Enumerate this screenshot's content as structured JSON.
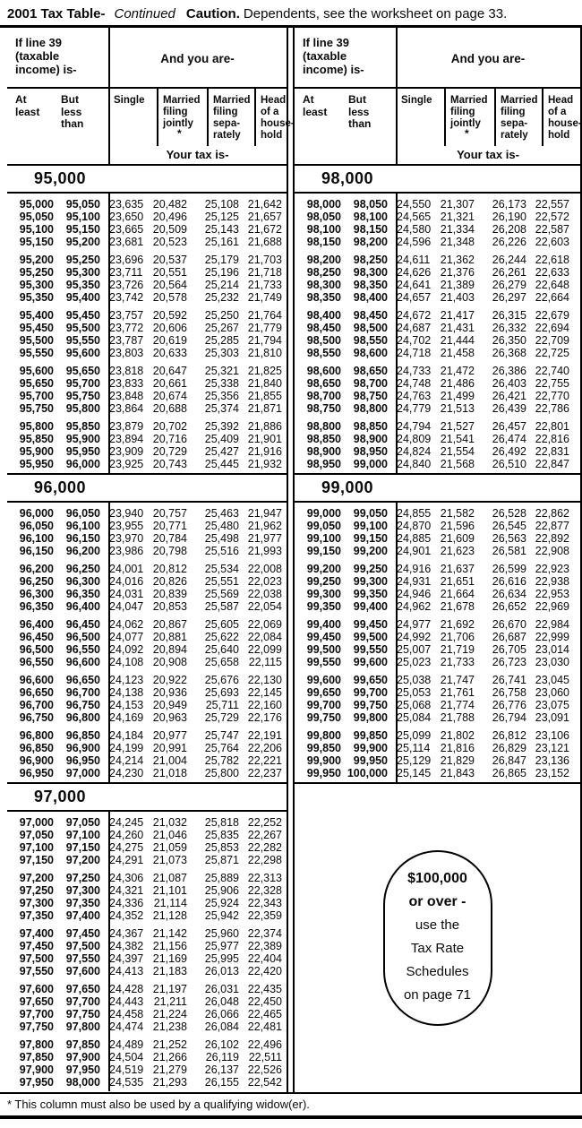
{
  "title": {
    "main": "2001 Tax Table-",
    "continued": "Continued",
    "caution": "Caution.",
    "caution_text": "Dependents, see the worksheet on page 33."
  },
  "header": {
    "income_label": "If line 39\n(taxable\nincome) is-",
    "and_you_are": "And you are-",
    "at_least": "At\nleast",
    "but_less_than": "But\nless\nthan",
    "col_single": "Single",
    "col_mfj": "Married\nfiling\njointly",
    "col_mfj_note": "*",
    "col_mfs": "Married\nfiling\nsepa-\nrately",
    "col_hoh": "Head\nof a\nhouse-\nhold",
    "your_tax_is": "Your tax is-"
  },
  "sections": [
    {
      "label": "95,000",
      "side": "left",
      "rows": [
        [
          "95,000",
          "95,050",
          "23,635",
          "20,482",
          "25,108",
          "21,642"
        ],
        [
          "95,050",
          "95,100",
          "23,650",
          "20,496",
          "25,125",
          "21,657"
        ],
        [
          "95,100",
          "95,150",
          "23,665",
          "20,509",
          "25,143",
          "21,672"
        ],
        [
          "95,150",
          "95,200",
          "23,681",
          "20,523",
          "25,161",
          "21,688"
        ],
        [
          "95,200",
          "95,250",
          "23,696",
          "20,537",
          "25,179",
          "21,703"
        ],
        [
          "95,250",
          "95,300",
          "23,711",
          "20,551",
          "25,196",
          "21,718"
        ],
        [
          "95,300",
          "95,350",
          "23,726",
          "20,564",
          "25,214",
          "21,733"
        ],
        [
          "95,350",
          "95,400",
          "23,742",
          "20,578",
          "25,232",
          "21,749"
        ],
        [
          "95,400",
          "95,450",
          "23,757",
          "20,592",
          "25,250",
          "21,764"
        ],
        [
          "95,450",
          "95,500",
          "23,772",
          "20,606",
          "25,267",
          "21,779"
        ],
        [
          "95,500",
          "95,550",
          "23,787",
          "20,619",
          "25,285",
          "21,794"
        ],
        [
          "95,550",
          "95,600",
          "23,803",
          "20,633",
          "25,303",
          "21,810"
        ],
        [
          "95,600",
          "95,650",
          "23,818",
          "20,647",
          "25,321",
          "21,825"
        ],
        [
          "95,650",
          "95,700",
          "23,833",
          "20,661",
          "25,338",
          "21,840"
        ],
        [
          "95,700",
          "95,750",
          "23,848",
          "20,674",
          "25,356",
          "21,855"
        ],
        [
          "95,750",
          "95,800",
          "23,864",
          "20,688",
          "25,374",
          "21,871"
        ],
        [
          "95,800",
          "95,850",
          "23,879",
          "20,702",
          "25,392",
          "21,886"
        ],
        [
          "95,850",
          "95,900",
          "23,894",
          "20,716",
          "25,409",
          "21,901"
        ],
        [
          "95,900",
          "95,950",
          "23,909",
          "20,729",
          "25,427",
          "21,916"
        ],
        [
          "95,950",
          "96,000",
          "23,925",
          "20,743",
          "25,445",
          "21,932"
        ]
      ]
    },
    {
      "label": "96,000",
      "side": "left",
      "rows": [
        [
          "96,000",
          "96,050",
          "23,940",
          "20,757",
          "25,463",
          "21,947"
        ],
        [
          "96,050",
          "96,100",
          "23,955",
          "20,771",
          "25,480",
          "21,962"
        ],
        [
          "96,100",
          "96,150",
          "23,970",
          "20,784",
          "25,498",
          "21,977"
        ],
        [
          "96,150",
          "96,200",
          "23,986",
          "20,798",
          "25,516",
          "21,993"
        ],
        [
          "96,200",
          "96,250",
          "24,001",
          "20,812",
          "25,534",
          "22,008"
        ],
        [
          "96,250",
          "96,300",
          "24,016",
          "20,826",
          "25,551",
          "22,023"
        ],
        [
          "96,300",
          "96,350",
          "24,031",
          "20,839",
          "25,569",
          "22,038"
        ],
        [
          "96,350",
          "96,400",
          "24,047",
          "20,853",
          "25,587",
          "22,054"
        ],
        [
          "96,400",
          "96,450",
          "24,062",
          "20,867",
          "25,605",
          "22,069"
        ],
        [
          "96,450",
          "96,500",
          "24,077",
          "20,881",
          "25,622",
          "22,084"
        ],
        [
          "96,500",
          "96,550",
          "24,092",
          "20,894",
          "25,640",
          "22,099"
        ],
        [
          "96,550",
          "96,600",
          "24,108",
          "20,908",
          "25,658",
          "22,115"
        ],
        [
          "96,600",
          "96,650",
          "24,123",
          "20,922",
          "25,676",
          "22,130"
        ],
        [
          "96,650",
          "96,700",
          "24,138",
          "20,936",
          "25,693",
          "22,145"
        ],
        [
          "96,700",
          "96,750",
          "24,153",
          "20,949",
          "25,711",
          "22,160"
        ],
        [
          "96,750",
          "96,800",
          "24,169",
          "20,963",
          "25,729",
          "22,176"
        ],
        [
          "96,800",
          "96,850",
          "24,184",
          "20,977",
          "25,747",
          "22,191"
        ],
        [
          "96,850",
          "96,900",
          "24,199",
          "20,991",
          "25,764",
          "22,206"
        ],
        [
          "96,900",
          "96,950",
          "24,214",
          "21,004",
          "25,782",
          "22,221"
        ],
        [
          "96,950",
          "97,000",
          "24,230",
          "21,018",
          "25,800",
          "22,237"
        ]
      ]
    },
    {
      "label": "97,000",
      "side": "left",
      "rows": [
        [
          "97,000",
          "97,050",
          "24,245",
          "21,032",
          "25,818",
          "22,252"
        ],
        [
          "97,050",
          "97,100",
          "24,260",
          "21,046",
          "25,835",
          "22,267"
        ],
        [
          "97,100",
          "97,150",
          "24,275",
          "21,059",
          "25,853",
          "22,282"
        ],
        [
          "97,150",
          "97,200",
          "24,291",
          "21,073",
          "25,871",
          "22,298"
        ],
        [
          "97,200",
          "97,250",
          "24,306",
          "21,087",
          "25,889",
          "22,313"
        ],
        [
          "97,250",
          "97,300",
          "24,321",
          "21,101",
          "25,906",
          "22,328"
        ],
        [
          "97,300",
          "97,350",
          "24,336",
          "21,114",
          "25,924",
          "22,343"
        ],
        [
          "97,350",
          "97,400",
          "24,352",
          "21,128",
          "25,942",
          "22,359"
        ],
        [
          "97,400",
          "97,450",
          "24,367",
          "21,142",
          "25,960",
          "22,374"
        ],
        [
          "97,450",
          "97,500",
          "24,382",
          "21,156",
          "25,977",
          "22,389"
        ],
        [
          "97,500",
          "97,550",
          "24,397",
          "21,169",
          "25,995",
          "22,404"
        ],
        [
          "97,550",
          "97,600",
          "24,413",
          "21,183",
          "26,013",
          "22,420"
        ],
        [
          "97,600",
          "97,650",
          "24,428",
          "21,197",
          "26,031",
          "22,435"
        ],
        [
          "97,650",
          "97,700",
          "24,443",
          "21,211",
          "26,048",
          "22,450"
        ],
        [
          "97,700",
          "97,750",
          "24,458",
          "21,224",
          "26,066",
          "22,465"
        ],
        [
          "97,750",
          "97,800",
          "24,474",
          "21,238",
          "26,084",
          "22,481"
        ],
        [
          "97,800",
          "97,850",
          "24,489",
          "21,252",
          "26,102",
          "22,496"
        ],
        [
          "97,850",
          "97,900",
          "24,504",
          "21,266",
          "26,119",
          "22,511"
        ],
        [
          "97,900",
          "97,950",
          "24,519",
          "21,279",
          "26,137",
          "22,526"
        ],
        [
          "97,950",
          "98,000",
          "24,535",
          "21,293",
          "26,155",
          "22,542"
        ]
      ]
    },
    {
      "label": "98,000",
      "side": "right",
      "rows": [
        [
          "98,000",
          "98,050",
          "24,550",
          "21,307",
          "26,173",
          "22,557"
        ],
        [
          "98,050",
          "98,100",
          "24,565",
          "21,321",
          "26,190",
          "22,572"
        ],
        [
          "98,100",
          "98,150",
          "24,580",
          "21,334",
          "26,208",
          "22,587"
        ],
        [
          "98,150",
          "98,200",
          "24,596",
          "21,348",
          "26,226",
          "22,603"
        ],
        [
          "98,200",
          "98,250",
          "24,611",
          "21,362",
          "26,244",
          "22,618"
        ],
        [
          "98,250",
          "98,300",
          "24,626",
          "21,376",
          "26,261",
          "22,633"
        ],
        [
          "98,300",
          "98,350",
          "24,641",
          "21,389",
          "26,279",
          "22,648"
        ],
        [
          "98,350",
          "98,400",
          "24,657",
          "21,403",
          "26,297",
          "22,664"
        ],
        [
          "98,400",
          "98,450",
          "24,672",
          "21,417",
          "26,315",
          "22,679"
        ],
        [
          "98,450",
          "98,500",
          "24,687",
          "21,431",
          "26,332",
          "22,694"
        ],
        [
          "98,500",
          "98,550",
          "24,702",
          "21,444",
          "26,350",
          "22,709"
        ],
        [
          "98,550",
          "98,600",
          "24,718",
          "21,458",
          "26,368",
          "22,725"
        ],
        [
          "98,600",
          "98,650",
          "24,733",
          "21,472",
          "26,386",
          "22,740"
        ],
        [
          "98,650",
          "98,700",
          "24,748",
          "21,486",
          "26,403",
          "22,755"
        ],
        [
          "98,700",
          "98,750",
          "24,763",
          "21,499",
          "26,421",
          "22,770"
        ],
        [
          "98,750",
          "98,800",
          "24,779",
          "21,513",
          "26,439",
          "22,786"
        ],
        [
          "98,800",
          "98,850",
          "24,794",
          "21,527",
          "26,457",
          "22,801"
        ],
        [
          "98,850",
          "98,900",
          "24,809",
          "21,541",
          "26,474",
          "22,816"
        ],
        [
          "98,900",
          "98,950",
          "24,824",
          "21,554",
          "26,492",
          "22,831"
        ],
        [
          "98,950",
          "99,000",
          "24,840",
          "21,568",
          "26,510",
          "22,847"
        ]
      ]
    },
    {
      "label": "99,000",
      "side": "right",
      "rows": [
        [
          "99,000",
          "99,050",
          "24,855",
          "21,582",
          "26,528",
          "22,862"
        ],
        [
          "99,050",
          "99,100",
          "24,870",
          "21,596",
          "26,545",
          "22,877"
        ],
        [
          "99,100",
          "99,150",
          "24,885",
          "21,609",
          "26,563",
          "22,892"
        ],
        [
          "99,150",
          "99,200",
          "24,901",
          "21,623",
          "26,581",
          "22,908"
        ],
        [
          "99,200",
          "99,250",
          "24,916",
          "21,637",
          "26,599",
          "22,923"
        ],
        [
          "99,250",
          "99,300",
          "24,931",
          "21,651",
          "26,616",
          "22,938"
        ],
        [
          "99,300",
          "99,350",
          "24,946",
          "21,664",
          "26,634",
          "22,953"
        ],
        [
          "99,350",
          "99,400",
          "24,962",
          "21,678",
          "26,652",
          "22,969"
        ],
        [
          "99,400",
          "99,450",
          "24,977",
          "21,692",
          "26,670",
          "22,984"
        ],
        [
          "99,450",
          "99,500",
          "24,992",
          "21,706",
          "26,687",
          "22,999"
        ],
        [
          "99,500",
          "99,550",
          "25,007",
          "21,719",
          "26,705",
          "23,014"
        ],
        [
          "99,550",
          "99,600",
          "25,023",
          "21,733",
          "26,723",
          "23,030"
        ],
        [
          "99,600",
          "99,650",
          "25,038",
          "21,747",
          "26,741",
          "23,045"
        ],
        [
          "99,650",
          "99,700",
          "25,053",
          "21,761",
          "26,758",
          "23,060"
        ],
        [
          "99,700",
          "99,750",
          "25,068",
          "21,774",
          "26,776",
          "23,075"
        ],
        [
          "99,750",
          "99,800",
          "25,084",
          "21,788",
          "26,794",
          "23,091"
        ],
        [
          "99,800",
          "99,850",
          "25,099",
          "21,802",
          "26,812",
          "23,106"
        ],
        [
          "99,850",
          "99,900",
          "25,114",
          "21,816",
          "26,829",
          "23,121"
        ],
        [
          "99,900",
          "99,950",
          "25,129",
          "21,829",
          "26,847",
          "23,136"
        ],
        [
          "99,950",
          "100,000",
          "25,145",
          "21,843",
          "26,865",
          "23,152"
        ]
      ]
    }
  ],
  "bubble": {
    "line1": "$100,000",
    "line2": "or over -",
    "line3": "use the",
    "line4": "Tax Rate",
    "line5": "Schedules",
    "line6": "on page 71"
  },
  "footnote": "* This column must also be used by a qualifying widow(er)."
}
